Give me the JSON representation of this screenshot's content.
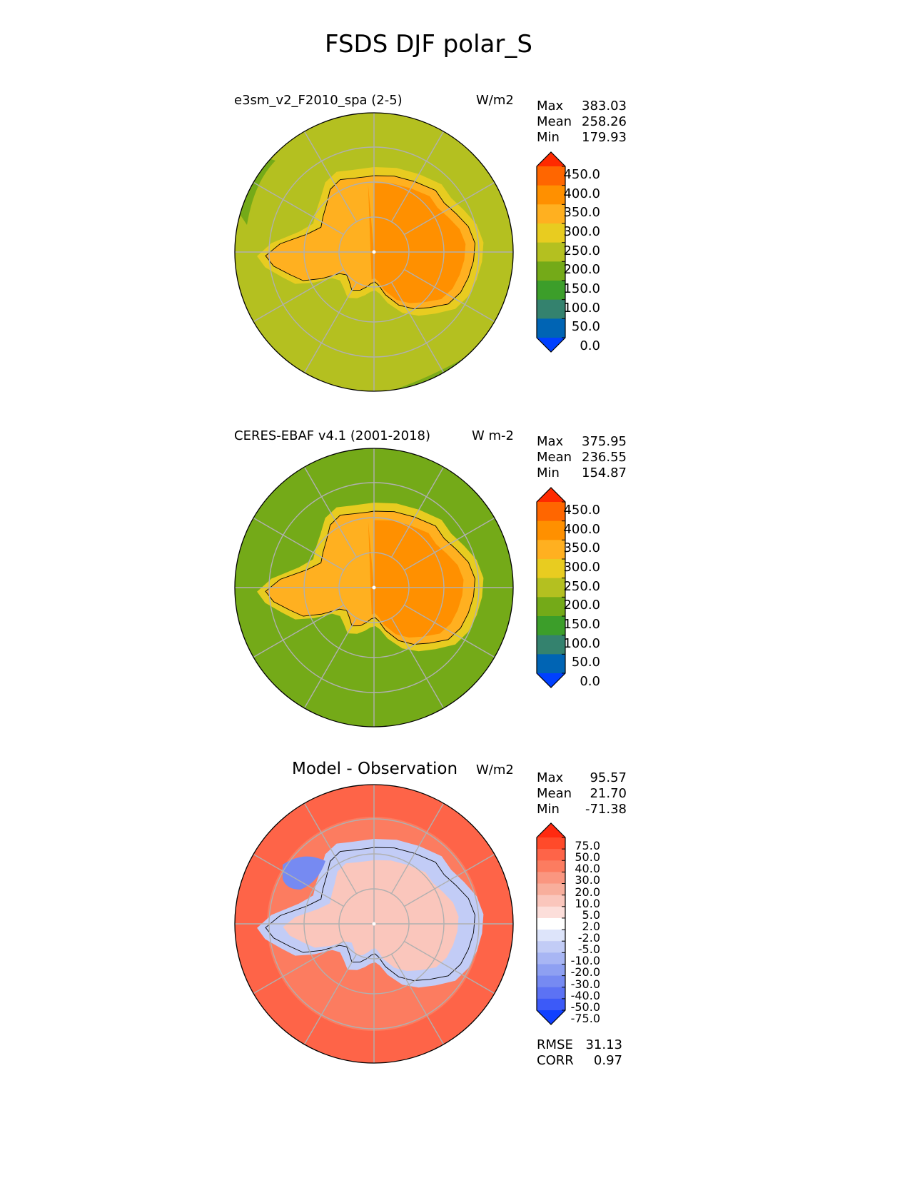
{
  "figure": {
    "title": "FSDS DJF polar_S"
  },
  "chart_data": [
    {
      "type": "heatmap",
      "projection": "south polar stereographic",
      "title": "e3sm_v2_F2010_spa (2-5)",
      "units": "W/m2",
      "stats": [
        {
          "label": "Max",
          "value": "383.03"
        },
        {
          "label": "Mean",
          "value": "258.26"
        },
        {
          "label": "Min",
          "value": "179.93"
        }
      ],
      "field": {
        "ocean_inner": 210,
        "ocean_outer_band": 180,
        "coast_ring": 275,
        "antarctica_west": 320,
        "antarctica_east": 360
      },
      "colorbar": {
        "ticks": [
          "450.0",
          "400.0",
          "350.0",
          "300.0",
          "250.0",
          "200.0",
          "150.0",
          "100.0",
          "50.0",
          "0.0"
        ],
        "colors": [
          "#ff2a00",
          "#ff6600",
          "#ff9000",
          "#ffb020",
          "#e8cc20",
          "#b4c020",
          "#74aa18",
          "#3c9e2a",
          "#34826e",
          "#0064b4",
          "#0040ff"
        ],
        "extend": "both"
      }
    },
    {
      "type": "heatmap",
      "projection": "south polar stereographic",
      "title": "CERES-EBAF v4.1 (2001-2018)",
      "units": "W m-2",
      "stats": [
        {
          "label": "Max",
          "value": "375.95"
        },
        {
          "label": "Mean",
          "value": "236.55"
        },
        {
          "label": "Min",
          "value": "154.87"
        }
      ],
      "field": {
        "ocean": 180,
        "coast_ring": 260,
        "antarctica_west": 320,
        "antarctica_east": 360
      },
      "colorbar": {
        "ticks": [
          "450.0",
          "400.0",
          "350.0",
          "300.0",
          "250.0",
          "200.0",
          "150.0",
          "100.0",
          "50.0",
          "0.0"
        ],
        "colors": [
          "#ff2a00",
          "#ff6600",
          "#ff9000",
          "#ffb020",
          "#e8cc20",
          "#b4c020",
          "#74aa18",
          "#3c9e2a",
          "#34826e",
          "#0064b4",
          "#0040ff"
        ],
        "extend": "both"
      }
    },
    {
      "type": "heatmap",
      "projection": "south polar stereographic",
      "title": "Model - Observation",
      "units": "W/m2",
      "stats": [
        {
          "label": "Max",
          "value": "95.57"
        },
        {
          "label": "Mean",
          "value": "21.70"
        },
        {
          "label": "Min",
          "value": "-71.38"
        }
      ],
      "metrics": [
        {
          "label": "RMSE",
          "value": "31.13"
        },
        {
          "label": "CORR",
          "value": "0.97"
        }
      ],
      "field": {
        "ocean_outer": 45,
        "ocean_mid": 30,
        "antarctica_coast": -10,
        "antarctica_interior": 5,
        "peninsula": -40
      },
      "colorbar": {
        "ticks": [
          "75.0",
          "50.0",
          "40.0",
          "30.0",
          "20.0",
          "10.0",
          "5.0",
          "2.0",
          "-2.0",
          "-5.0",
          "-10.0",
          "-20.0",
          "-30.0",
          "-40.0",
          "-50.0",
          "-75.0"
        ],
        "colors": [
          "#ff2a10",
          "#ff4a2a",
          "#fe6448",
          "#fc7c60",
          "#fa9680",
          "#f8ae9c",
          "#fac6bc",
          "#fcdeda",
          "#ffffff",
          "#dde4fa",
          "#c2ccf6",
          "#a8b6f4",
          "#8ea0f2",
          "#768af2",
          "#5c72f4",
          "#3c5af8",
          "#1040ff"
        ],
        "extend": "both"
      }
    }
  ]
}
